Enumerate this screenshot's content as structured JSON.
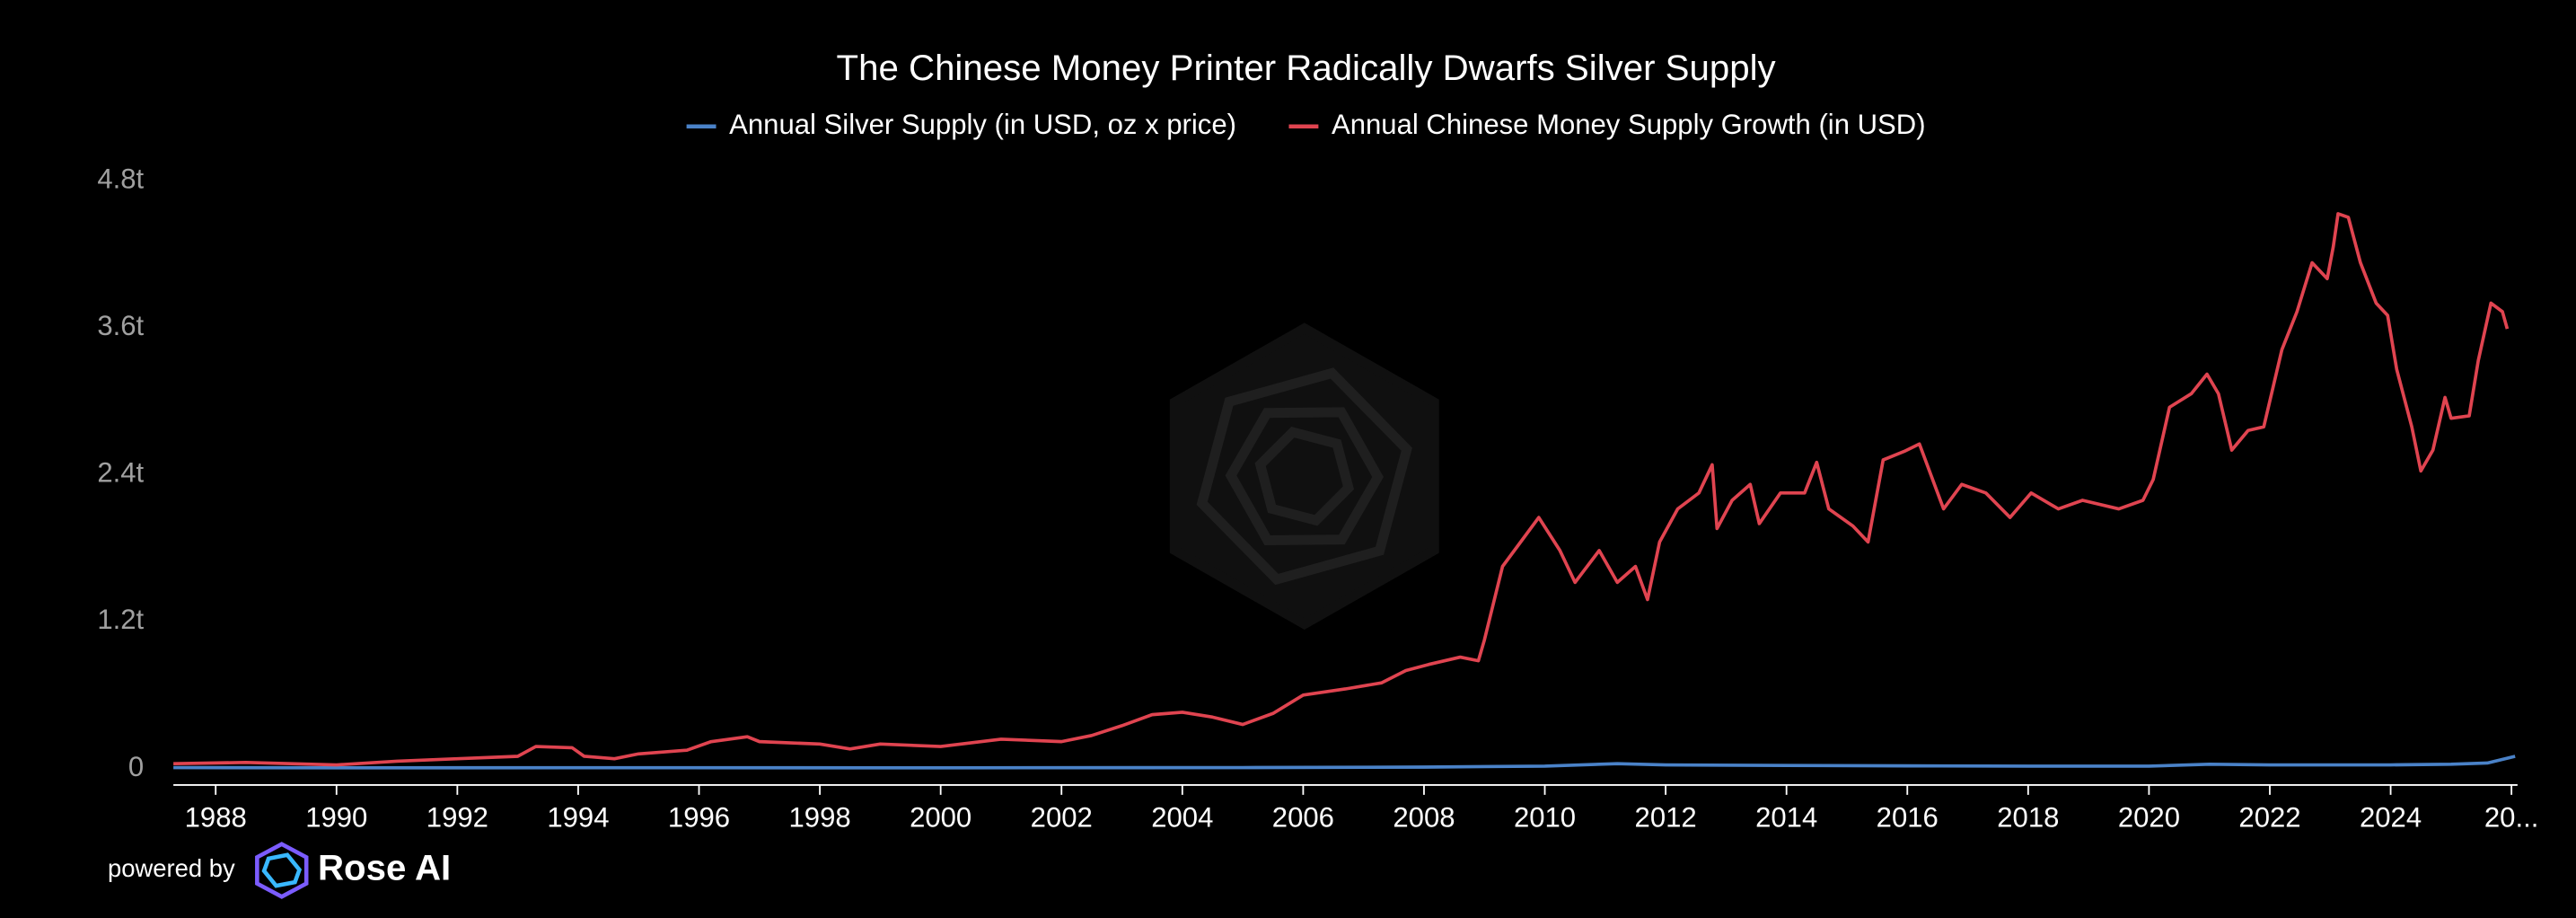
{
  "chart_data": {
    "type": "line",
    "title": "The Chinese Money Printer Radically Dwarfs Silver Supply",
    "xlim": [
      1987.3,
      2026.1
    ],
    "ylim": [
      0,
      4.8
    ],
    "yticks": [
      0,
      {
        "value": 1.2,
        "label": "1.2t"
      },
      {
        "value": 2.4,
        "label": "2.4t"
      },
      {
        "value": 3.6,
        "label": "3.6t"
      },
      {
        "value": 4.8,
        "label": "4.8t"
      }
    ],
    "xticks": [
      1988,
      1990,
      1992,
      1994,
      1996,
      1998,
      2000,
      2002,
      2004,
      2006,
      2008,
      2010,
      2012,
      2014,
      2016,
      2018,
      2020,
      2022,
      2024,
      {
        "value": 2026,
        "label": "20..."
      }
    ],
    "grid": false,
    "legend": "top",
    "series": [
      {
        "name": "Annual Silver Supply (in USD, oz x price)",
        "color": "#4a82c8",
        "x": [
          1987.3,
          1990,
          1995,
          2000,
          2005,
          2008,
          2010,
          2011.2,
          2012,
          2014,
          2016,
          2018,
          2020,
          2021,
          2022,
          2024,
          2025,
          2025.6,
          2026.06
        ],
        "values": [
          0.008,
          0.006,
          0.007,
          0.006,
          0.008,
          0.012,
          0.02,
          0.04,
          0.03,
          0.025,
          0.022,
          0.02,
          0.02,
          0.035,
          0.03,
          0.03,
          0.035,
          0.045,
          0.1
        ]
      },
      {
        "name": "Annual Chinese Money Supply Growth (in USD)",
        "color": "#e04450",
        "x": [
          1987.3,
          1988.5,
          1990,
          1991,
          1992,
          1993,
          1993.3,
          1993.9,
          1994.1,
          1994.6,
          1995,
          1995.8,
          1996.2,
          1996.8,
          1997,
          1998,
          1998.5,
          1999,
          2000,
          2001,
          2002,
          2002.5,
          2003,
          2003.5,
          2004,
          2004.5,
          2005,
          2005.5,
          2006,
          2006.7,
          2007.3,
          2007.7,
          2008.08,
          2008.6,
          2008.9,
          2009.0,
          2009.3,
          2009.6,
          2009.9,
          2010.25,
          2010.5,
          2010.9,
          2011.2,
          2011.5,
          2011.7,
          2011.9,
          2012.2,
          2012.55,
          2012.77,
          2012.85,
          2013.1,
          2013.4,
          2013.55,
          2013.9,
          2014.3,
          2014.5,
          2014.7,
          2015.1,
          2015.35,
          2015.6,
          2015.95,
          2016.2,
          2016.6,
          2016.9,
          2017.3,
          2017.7,
          2018.05,
          2018.5,
          2018.9,
          2019.5,
          2019.9,
          2020.07,
          2020.34,
          2020.7,
          2020.96,
          2021.15,
          2021.37,
          2021.64,
          2021.9,
          2022.2,
          2022.45,
          2022.7,
          2022.95,
          2023.05,
          2023.13,
          2023.3,
          2023.5,
          2023.76,
          2023.95,
          2024.1,
          2024.35,
          2024.5,
          2024.7,
          2024.9,
          2025.0,
          2025.3,
          2025.45,
          2025.66,
          2025.85,
          2025.93
        ],
        "values": [
          0.04,
          0.05,
          0.03,
          0.06,
          0.08,
          0.1,
          0.18,
          0.17,
          0.1,
          0.08,
          0.12,
          0.15,
          0.22,
          0.26,
          0.22,
          0.2,
          0.16,
          0.2,
          0.18,
          0.24,
          0.22,
          0.27,
          0.35,
          0.44,
          0.46,
          0.42,
          0.36,
          0.45,
          0.6,
          0.65,
          0.7,
          0.8,
          0.85,
          0.91,
          0.88,
          1.05,
          1.65,
          1.85,
          2.05,
          1.78,
          1.52,
          1.78,
          1.52,
          1.65,
          1.38,
          1.85,
          2.12,
          2.25,
          2.48,
          1.96,
          2.19,
          2.32,
          2.0,
          2.25,
          2.25,
          2.5,
          2.12,
          1.98,
          1.85,
          2.52,
          2.59,
          2.65,
          2.12,
          2.32,
          2.25,
          2.05,
          2.25,
          2.12,
          2.19,
          2.12,
          2.19,
          2.36,
          2.95,
          3.06,
          3.22,
          3.06,
          2.6,
          2.76,
          2.79,
          3.42,
          3.73,
          4.13,
          4.0,
          4.26,
          4.53,
          4.5,
          4.13,
          3.8,
          3.7,
          3.26,
          2.79,
          2.43,
          2.6,
          3.03,
          2.86,
          2.88,
          3.33,
          3.8,
          3.73,
          3.59
        ]
      }
    ]
  },
  "footer": {
    "powered_by": "powered by",
    "brand": "Rose AI"
  }
}
